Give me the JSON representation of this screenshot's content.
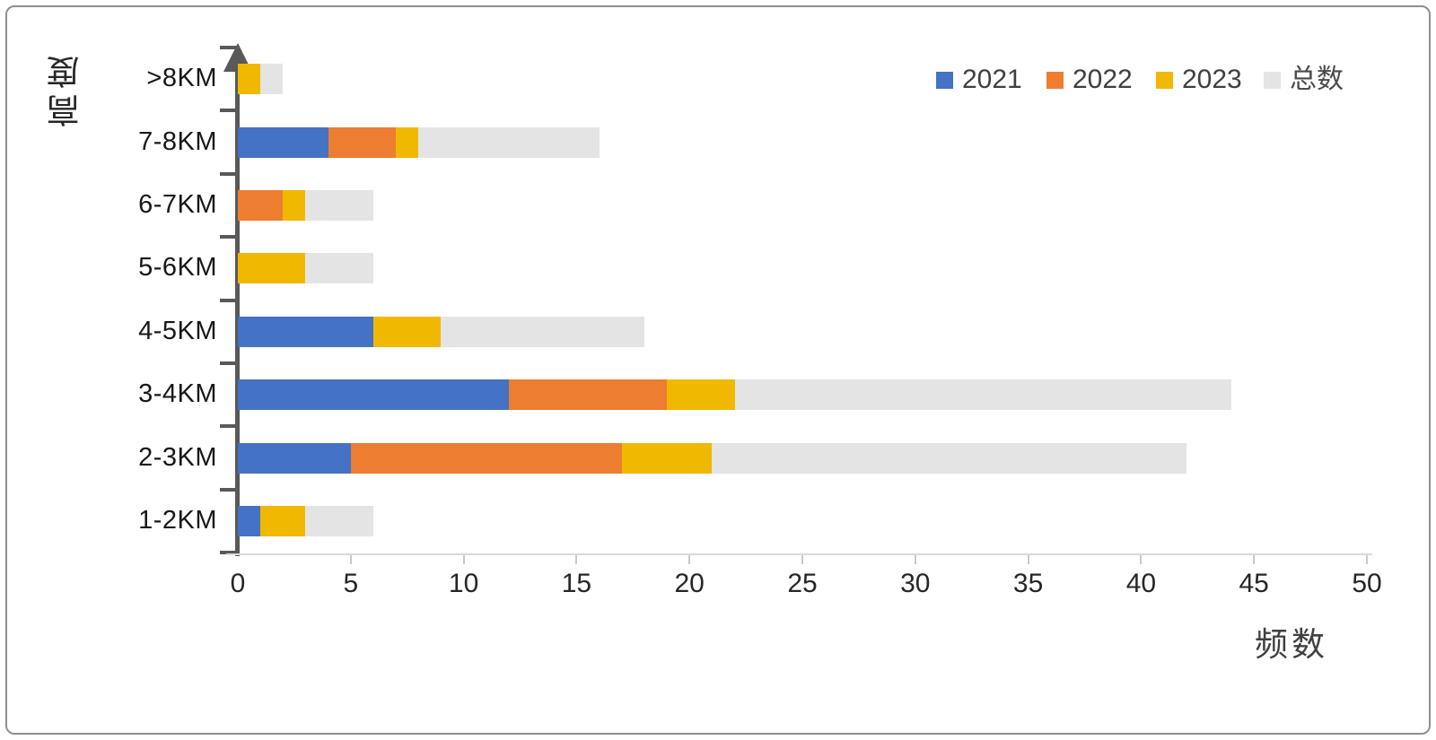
{
  "chart_data": {
    "type": "bar",
    "orientation": "horizontal",
    "stacked": true,
    "title": "",
    "xlabel": "频数",
    "ylabel": "高度",
    "categories": [
      ">8KM",
      "7-8KM",
      "6-7KM",
      "5-6KM",
      "4-5KM",
      "3-4KM",
      "2-3KM",
      "1-2KM"
    ],
    "series": [
      {
        "name": "2021",
        "color": "#4472C4",
        "values": [
          0,
          4,
          0,
          0,
          6,
          12,
          5,
          1
        ]
      },
      {
        "name": "2022",
        "color": "#ED7D31",
        "values": [
          0,
          3,
          2,
          0,
          0,
          7,
          12,
          0
        ]
      },
      {
        "name": "2023",
        "color": "#F0B800",
        "values": [
          1,
          1,
          1,
          3,
          3,
          3,
          4,
          2
        ]
      },
      {
        "name": "总数",
        "color": "#E4E4E4",
        "values": [
          1,
          8,
          3,
          3,
          9,
          22,
          21,
          3
        ]
      }
    ],
    "xlim": [
      0,
      50
    ],
    "xticks": [
      0,
      5,
      10,
      15,
      20,
      25,
      30,
      35,
      40,
      45,
      50
    ],
    "legend_position": "top-right",
    "grid": false
  },
  "colors": {
    "axis": "#595959",
    "x_axis_line": "#D9D9D9",
    "text": "#262626"
  }
}
